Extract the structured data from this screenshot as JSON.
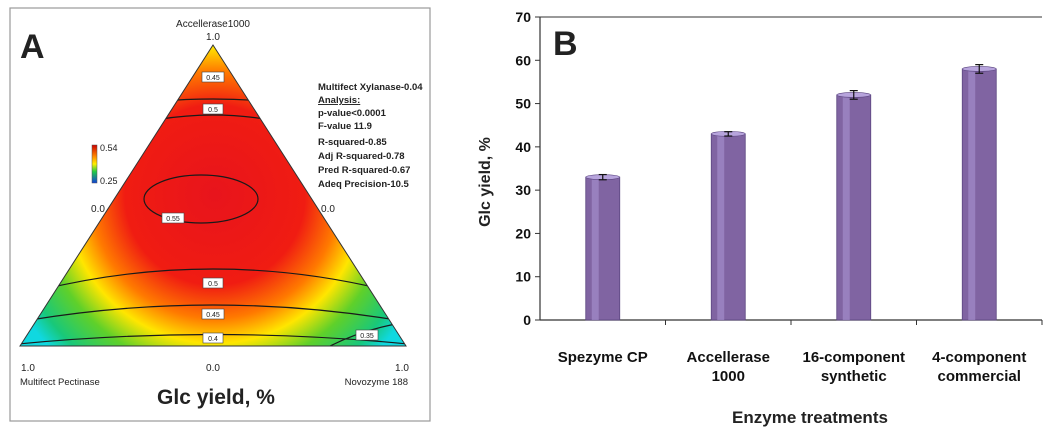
{
  "panel_a": {
    "letter": "A",
    "vertex_top_name": "Accellerase1000",
    "vertex_top_value": "1.0",
    "vertex_left_name": "Multifect Pectinase",
    "vertex_left_value": "1.0",
    "vertex_right_name": "Novozyme 188",
    "vertex_right_value": "1.0",
    "edge_left_value": "0.0",
    "edge_right_value": "0.0",
    "edge_bottom_value": "0.0",
    "colorbar_max": "0.54",
    "colorbar_min": "0.25",
    "stats": [
      "Multifect Xylanase-0.04",
      "Analysis:",
      "p-value<0.0001",
      "F-value 11.9",
      "R-squared-0.85",
      "Adj R-squared-0.78",
      "Pred R-squared-0.67",
      "Adeq Precision-10.5"
    ],
    "contour_labels": [
      "0.45",
      "0.5",
      "0.55",
      "0.5",
      "0.45",
      "0.4",
      "0.35"
    ],
    "xlabel": "Glc yield, %",
    "colors": {
      "high": "#e8141c",
      "mid": "#ffe600",
      "low": "#0a6ad8"
    }
  },
  "chart_data": {
    "type": "bar",
    "panel_letter": "B",
    "categories": [
      [
        "Spezyme CP"
      ],
      [
        "Accellerase",
        "1000"
      ],
      [
        "16-component",
        "synthetic"
      ],
      [
        "4-component",
        "commercial"
      ]
    ],
    "values": [
      33,
      43,
      52,
      58
    ],
    "errors": [
      0.6,
      0.5,
      1.0,
      1.0
    ],
    "ylim": [
      0,
      70
    ],
    "yticks": [
      0,
      10,
      20,
      30,
      40,
      50,
      60,
      70
    ],
    "xlabel": "Enzyme treatments",
    "ylabel": "Glc yield, %",
    "bar_color": "#8064a2",
    "grid": false
  }
}
